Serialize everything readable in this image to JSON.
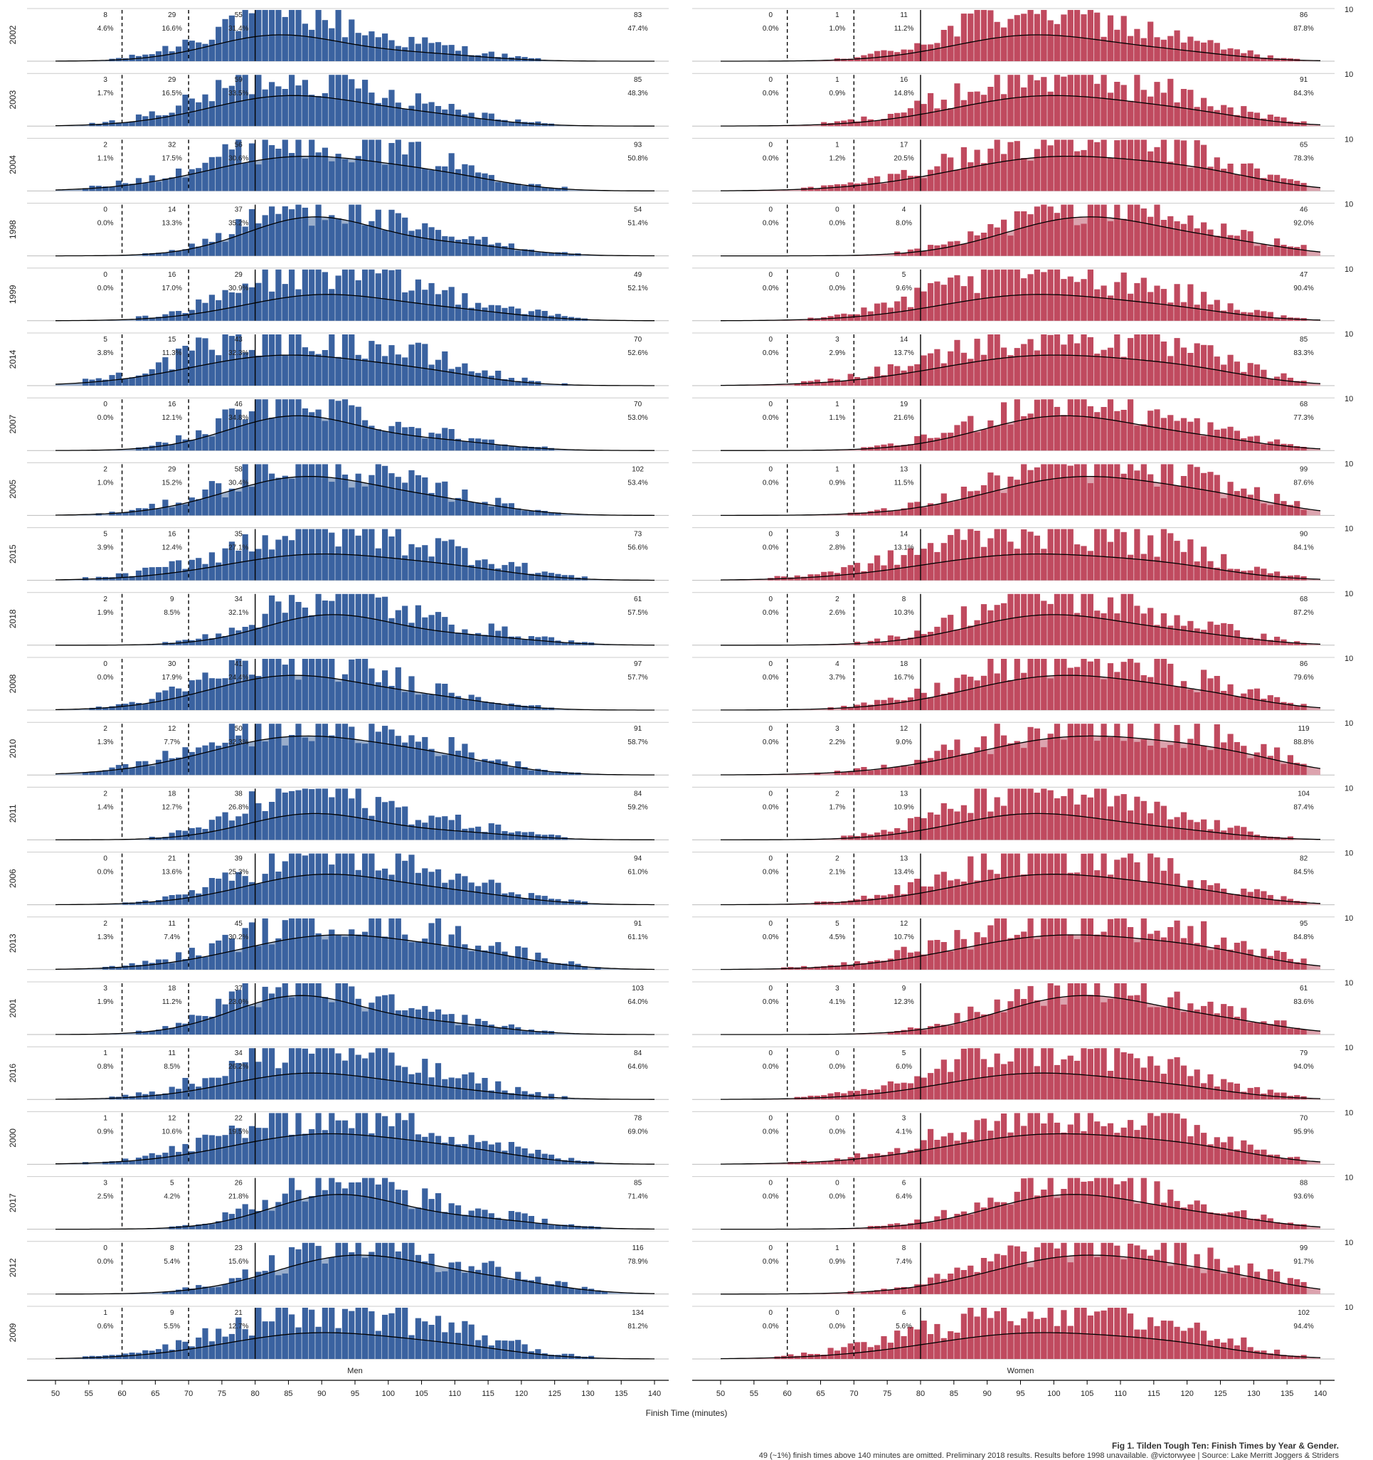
{
  "chart_data": {
    "type": "histogram",
    "title": "Fig 1. Tilden Tough Ten: Finish Times by Year & Gender.",
    "subtitle_lines": [
      "49 (~1%) finish times above 140 minutes are omitted. Preliminary 2018 results. Results before 1998 unavailable.",
      "@victorwyee | Source: Lake Merritt Joggers & Striders"
    ],
    "xlabel": "Finish Time (minutes)",
    "xlim": [
      50,
      140
    ],
    "x_ticks": [
      50,
      55,
      60,
      65,
      70,
      75,
      80,
      85,
      90,
      95,
      100,
      105,
      110,
      115,
      120,
      125,
      130,
      135,
      140
    ],
    "reference_lines": [
      {
        "x": 60,
        "style": "dashed"
      },
      {
        "x": 70,
        "style": "dashed"
      },
      {
        "x": 80,
        "style": "solid"
      }
    ],
    "y_tick_label": "10",
    "panels": [
      "Men",
      "Women"
    ],
    "colors": {
      "Men": "#3a62a0",
      "Women": "#c04a5f",
      "Men_density": "#9aaecb",
      "Women_density": "#dca3ae"
    },
    "rows": [
      {
        "year": "2002",
        "Men": {
          "counts": [
            "8",
            "29",
            "55",
            "83"
          ],
          "pcts": [
            "4.6%",
            "16.6%",
            "31.4%",
            "47.4%"
          ]
        },
        "Women": {
          "counts": [
            "0",
            "1",
            "11",
            "86"
          ],
          "pcts": [
            "0.0%",
            "1.0%",
            "11.2%",
            "87.8%"
          ]
        }
      },
      {
        "year": "2003",
        "Men": {
          "counts": [
            "3",
            "29",
            "59",
            "85"
          ],
          "pcts": [
            "1.7%",
            "16.5%",
            "33.5%",
            "48.3%"
          ]
        },
        "Women": {
          "counts": [
            "0",
            "1",
            "16",
            "91"
          ],
          "pcts": [
            "0.0%",
            "0.9%",
            "14.8%",
            "84.3%"
          ]
        }
      },
      {
        "year": "2004",
        "Men": {
          "counts": [
            "2",
            "32",
            "56",
            "93"
          ],
          "pcts": [
            "1.1%",
            "17.5%",
            "30.6%",
            "50.8%"
          ]
        },
        "Women": {
          "counts": [
            "0",
            "1",
            "17",
            "65"
          ],
          "pcts": [
            "0.0%",
            "1.2%",
            "20.5%",
            "78.3%"
          ]
        }
      },
      {
        "year": "1998",
        "Men": {
          "counts": [
            "0",
            "14",
            "37",
            "54"
          ],
          "pcts": [
            "0.0%",
            "13.3%",
            "35.2%",
            "51.4%"
          ]
        },
        "Women": {
          "counts": [
            "0",
            "0",
            "4",
            "46"
          ],
          "pcts": [
            "0.0%",
            "0.0%",
            "8.0%",
            "92.0%"
          ]
        }
      },
      {
        "year": "1999",
        "Men": {
          "counts": [
            "0",
            "16",
            "29",
            "49"
          ],
          "pcts": [
            "0.0%",
            "17.0%",
            "30.9%",
            "52.1%"
          ]
        },
        "Women": {
          "counts": [
            "0",
            "0",
            "5",
            "47"
          ],
          "pcts": [
            "0.0%",
            "0.0%",
            "9.6%",
            "90.4%"
          ]
        }
      },
      {
        "year": "2014",
        "Men": {
          "counts": [
            "5",
            "15",
            "43",
            "70"
          ],
          "pcts": [
            "3.8%",
            "11.3%",
            "32.3%",
            "52.6%"
          ]
        },
        "Women": {
          "counts": [
            "0",
            "3",
            "14",
            "85"
          ],
          "pcts": [
            "0.0%",
            "2.9%",
            "13.7%",
            "83.3%"
          ]
        }
      },
      {
        "year": "2007",
        "Men": {
          "counts": [
            "0",
            "16",
            "46",
            "70"
          ],
          "pcts": [
            "0.0%",
            "12.1%",
            "34.8%",
            "53.0%"
          ]
        },
        "Women": {
          "counts": [
            "0",
            "1",
            "19",
            "68"
          ],
          "pcts": [
            "0.0%",
            "1.1%",
            "21.6%",
            "77.3%"
          ]
        }
      },
      {
        "year": "2005",
        "Men": {
          "counts": [
            "2",
            "29",
            "58",
            "102"
          ],
          "pcts": [
            "1.0%",
            "15.2%",
            "30.4%",
            "53.4%"
          ]
        },
        "Women": {
          "counts": [
            "0",
            "1",
            "13",
            "99"
          ],
          "pcts": [
            "0.0%",
            "0.9%",
            "11.5%",
            "87.6%"
          ]
        }
      },
      {
        "year": "2015",
        "Men": {
          "counts": [
            "5",
            "16",
            "35",
            "73"
          ],
          "pcts": [
            "3.9%",
            "12.4%",
            "27.1%",
            "56.6%"
          ]
        },
        "Women": {
          "counts": [
            "0",
            "3",
            "14",
            "90"
          ],
          "pcts": [
            "0.0%",
            "2.8%",
            "13.1%",
            "84.1%"
          ]
        }
      },
      {
        "year": "2018",
        "Men": {
          "counts": [
            "2",
            "9",
            "34",
            "61"
          ],
          "pcts": [
            "1.9%",
            "8.5%",
            "32.1%",
            "57.5%"
          ]
        },
        "Women": {
          "counts": [
            "0",
            "2",
            "8",
            "68"
          ],
          "pcts": [
            "0.0%",
            "2.6%",
            "10.3%",
            "87.2%"
          ]
        }
      },
      {
        "year": "2008",
        "Men": {
          "counts": [
            "0",
            "30",
            "41",
            "97"
          ],
          "pcts": [
            "0.0%",
            "17.9%",
            "24.4%",
            "57.7%"
          ]
        },
        "Women": {
          "counts": [
            "0",
            "4",
            "18",
            "86"
          ],
          "pcts": [
            "0.0%",
            "3.7%",
            "16.7%",
            "79.6%"
          ]
        }
      },
      {
        "year": "2010",
        "Men": {
          "counts": [
            "2",
            "12",
            "50",
            "91"
          ],
          "pcts": [
            "1.3%",
            "7.7%",
            "32.3%",
            "58.7%"
          ]
        },
        "Women": {
          "counts": [
            "0",
            "3",
            "12",
            "119"
          ],
          "pcts": [
            "0.0%",
            "2.2%",
            "9.0%",
            "88.8%"
          ]
        }
      },
      {
        "year": "2011",
        "Men": {
          "counts": [
            "2",
            "18",
            "38",
            "84"
          ],
          "pcts": [
            "1.4%",
            "12.7%",
            "26.8%",
            "59.2%"
          ]
        },
        "Women": {
          "counts": [
            "0",
            "2",
            "13",
            "104"
          ],
          "pcts": [
            "0.0%",
            "1.7%",
            "10.9%",
            "87.4%"
          ]
        }
      },
      {
        "year": "2006",
        "Men": {
          "counts": [
            "0",
            "21",
            "39",
            "94"
          ],
          "pcts": [
            "0.0%",
            "13.6%",
            "25.3%",
            "61.0%"
          ]
        },
        "Women": {
          "counts": [
            "0",
            "2",
            "13",
            "82"
          ],
          "pcts": [
            "0.0%",
            "2.1%",
            "13.4%",
            "84.5%"
          ]
        }
      },
      {
        "year": "2013",
        "Men": {
          "counts": [
            "2",
            "11",
            "45",
            "91"
          ],
          "pcts": [
            "1.3%",
            "7.4%",
            "30.2%",
            "61.1%"
          ]
        },
        "Women": {
          "counts": [
            "0",
            "5",
            "12",
            "95"
          ],
          "pcts": [
            "0.0%",
            "4.5%",
            "10.7%",
            "84.8%"
          ]
        }
      },
      {
        "year": "2001",
        "Men": {
          "counts": [
            "3",
            "18",
            "37",
            "103"
          ],
          "pcts": [
            "1.9%",
            "11.2%",
            "23.0%",
            "64.0%"
          ]
        },
        "Women": {
          "counts": [
            "0",
            "3",
            "9",
            "61"
          ],
          "pcts": [
            "0.0%",
            "4.1%",
            "12.3%",
            "83.6%"
          ]
        }
      },
      {
        "year": "2016",
        "Men": {
          "counts": [
            "1",
            "11",
            "34",
            "84"
          ],
          "pcts": [
            "0.8%",
            "8.5%",
            "26.2%",
            "64.6%"
          ]
        },
        "Women": {
          "counts": [
            "0",
            "0",
            "5",
            "79"
          ],
          "pcts": [
            "0.0%",
            "0.0%",
            "6.0%",
            "94.0%"
          ]
        }
      },
      {
        "year": "2000",
        "Men": {
          "counts": [
            "1",
            "12",
            "22",
            "78"
          ],
          "pcts": [
            "0.9%",
            "10.6%",
            "19.5%",
            "69.0%"
          ]
        },
        "Women": {
          "counts": [
            "0",
            "0",
            "3",
            "70"
          ],
          "pcts": [
            "0.0%",
            "0.0%",
            "4.1%",
            "95.9%"
          ]
        }
      },
      {
        "year": "2017",
        "Men": {
          "counts": [
            "3",
            "5",
            "26",
            "85"
          ],
          "pcts": [
            "2.5%",
            "4.2%",
            "21.8%",
            "71.4%"
          ]
        },
        "Women": {
          "counts": [
            "0",
            "0",
            "6",
            "88"
          ],
          "pcts": [
            "0.0%",
            "0.0%",
            "6.4%",
            "93.6%"
          ]
        }
      },
      {
        "year": "2012",
        "Men": {
          "counts": [
            "0",
            "8",
            "23",
            "116"
          ],
          "pcts": [
            "0.0%",
            "5.4%",
            "15.6%",
            "78.9%"
          ]
        },
        "Women": {
          "counts": [
            "0",
            "1",
            "8",
            "99"
          ],
          "pcts": [
            "0.0%",
            "0.9%",
            "7.4%",
            "91.7%"
          ]
        }
      },
      {
        "year": "2009",
        "Men": {
          "counts": [
            "1",
            "9",
            "21",
            "134"
          ],
          "pcts": [
            "0.6%",
            "5.5%",
            "12.7%",
            "81.2%"
          ]
        },
        "Women": {
          "counts": [
            "0",
            "0",
            "6",
            "102"
          ],
          "pcts": [
            "0.0%",
            "0.0%",
            "5.6%",
            "94.4%"
          ]
        }
      }
    ]
  }
}
